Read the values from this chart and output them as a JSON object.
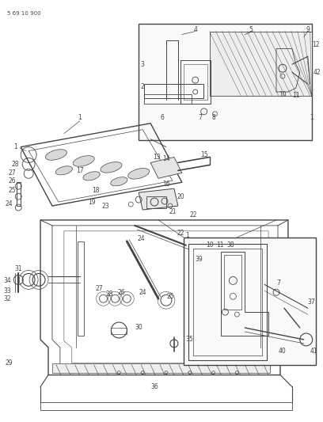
{
  "doc_number": "5 69 10 900",
  "bg_color": "#ffffff",
  "lc": "#444444",
  "fig_width": 4.08,
  "fig_height": 5.33,
  "dpi": 100
}
